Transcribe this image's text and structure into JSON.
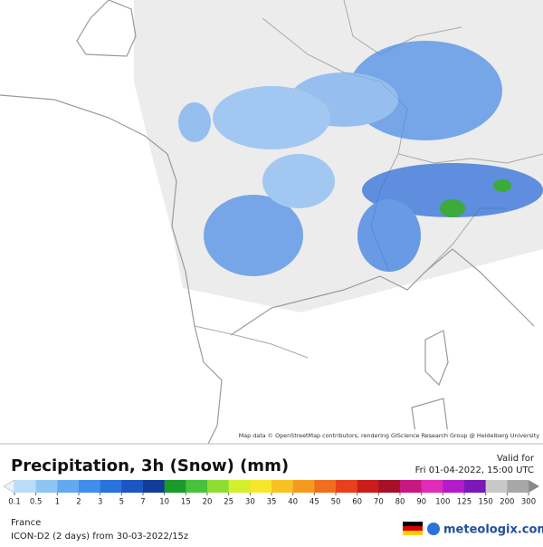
{
  "map": {
    "attribution": "Map data © OpenStreetMap contributors, rendering GIScience Research Group @ Heidelberg University"
  },
  "header": {
    "title": "Precipitation, 3h (Snow) (mm)",
    "valid_label": "Valid for",
    "valid_time": "Fri 01-04-2022, 15:00 UTC"
  },
  "legend": {
    "labels": [
      "0.1",
      "0.5",
      "1",
      "2",
      "3",
      "5",
      "7",
      "10",
      "15",
      "20",
      "25",
      "30",
      "35",
      "40",
      "45",
      "50",
      "60",
      "70",
      "80",
      "90",
      "100",
      "125",
      "150",
      "200",
      "300"
    ],
    "colors": [
      "#b9dcf9",
      "#8fc5f5",
      "#63a9ef",
      "#3f8eea",
      "#2a72dc",
      "#1c56c2",
      "#123c98",
      "#1a9a2a",
      "#47c23a",
      "#8edd32",
      "#d4ef2e",
      "#f7e72a",
      "#f8c225",
      "#f59a20",
      "#ef6e1f",
      "#e8401c",
      "#cc1b1b",
      "#a8102a",
      "#c81880",
      "#e02ab8",
      "#b21cc8",
      "#7a18b8",
      "#c9c9c9",
      "#a8a8a8"
    ]
  },
  "footer": {
    "region": "France",
    "model": "ICON-D2 (2 days) from 30-03-2022/15z",
    "brand": "meteologix.com"
  }
}
